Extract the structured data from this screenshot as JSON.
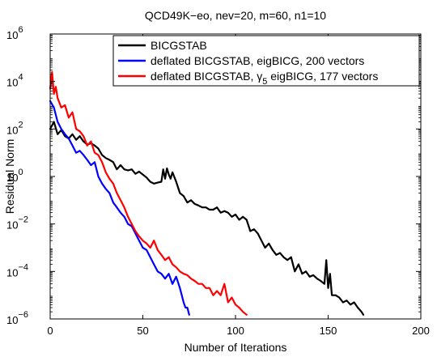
{
  "chart_data": {
    "type": "line",
    "title": "QCD49K−eo, nev=20, m=60, n1=10",
    "xlabel": "Number of Iterations",
    "ylabel": "Residual Norm",
    "xlim": [
      0,
      200
    ],
    "ylim": [
      1e-06,
      1000000.0
    ],
    "yscale": "log",
    "grid": false,
    "legend_position": "top-right",
    "x_ticks": [
      0,
      50,
      100,
      150,
      200
    ],
    "x_tick_labels": [
      "0",
      "50",
      "100",
      "150",
      "200"
    ],
    "y_ticks": [
      1e-06,
      0.0001,
      0.01,
      1.0,
      100.0,
      10000.0,
      1000000.0
    ],
    "y_tick_labels": [
      {
        "base": "10",
        "exp": "−6"
      },
      {
        "base": "10",
        "exp": "−4"
      },
      {
        "base": "10",
        "exp": "−2"
      },
      {
        "base": "10",
        "exp": "0"
      },
      {
        "base": "10",
        "exp": "2"
      },
      {
        "base": "10",
        "exp": "4"
      },
      {
        "base": "10",
        "exp": "6"
      }
    ],
    "series": [
      {
        "name": "BICGSTAB",
        "color": "#000000",
        "x": [
          0,
          2,
          4,
          6,
          8,
          10,
          12,
          14,
          16,
          18,
          20,
          22,
          24,
          26,
          28,
          30,
          32,
          34,
          36,
          38,
          40,
          42,
          44,
          46,
          48,
          50,
          52,
          54,
          56,
          58,
          60,
          61,
          62,
          63,
          64,
          65,
          66,
          68,
          70,
          72,
          74,
          76,
          78,
          80,
          82,
          84,
          86,
          88,
          90,
          92,
          94,
          96,
          98,
          100,
          102,
          104,
          106,
          108,
          110,
          112,
          114,
          116,
          118,
          120,
          122,
          124,
          126,
          128,
          130,
          132,
          134,
          136,
          138,
          140,
          142,
          144,
          146,
          148,
          149,
          150,
          151,
          152,
          154,
          156,
          158,
          160,
          162,
          164,
          166,
          168,
          169
        ],
        "y": [
          100,
          200,
          60,
          90,
          50,
          40,
          60,
          35,
          50,
          30,
          22,
          25,
          20,
          15,
          8,
          6,
          5,
          4,
          2,
          3,
          2,
          1.8,
          2,
          1.3,
          1.6,
          1.2,
          0.9,
          0.6,
          0.5,
          0.55,
          0.6,
          2,
          0.8,
          2.2,
          1.2,
          0.8,
          1.5,
          0.6,
          0.2,
          0.15,
          0.08,
          0.1,
          0.07,
          0.06,
          0.05,
          0.05,
          0.04,
          0.04,
          0.05,
          0.03,
          0.035,
          0.03,
          0.02,
          0.025,
          0.015,
          0.02,
          0.015,
          0.005,
          0.006,
          0.004,
          0.002,
          0.001,
          0.0015,
          0.0008,
          0.0005,
          0.0006,
          0.0004,
          0.0003,
          0.0004,
          0.0001,
          0.0002,
          8e-05,
          0.0001,
          6e-05,
          7e-05,
          5e-05,
          4e-05,
          3e-05,
          0.0003,
          2e-05,
          8e-05,
          1e-05,
          1e-05,
          8e-06,
          5e-06,
          6e-06,
          4e-06,
          5e-06,
          3e-06,
          2e-06,
          1.5e-06
        ]
      },
      {
        "name": "deflated BICGSTAB, eigBICG, 200 vectors",
        "color": "#0000ff",
        "x": [
          0,
          2,
          4,
          6,
          8,
          10,
          12,
          14,
          16,
          18,
          20,
          22,
          24,
          26,
          28,
          30,
          32,
          34,
          36,
          38,
          40,
          42,
          44,
          46,
          48,
          50,
          52,
          54,
          56,
          58,
          60,
          62,
          64,
          66,
          68,
          70,
          72,
          73,
          74,
          75
        ],
        "y": [
          1500,
          800,
          200,
          100,
          60,
          40,
          20,
          10,
          12,
          8,
          5,
          3,
          4,
          1,
          0.5,
          0.3,
          0.2,
          0.08,
          0.05,
          0.03,
          0.02,
          0.01,
          0.008,
          0.004,
          0.002,
          0.001,
          0.0008,
          0.0004,
          0.0002,
          0.0001,
          8e-05,
          5e-05,
          8e-05,
          3e-05,
          6e-05,
          2e-05,
          5e-06,
          3e-06,
          3e-06,
          1.5e-06
        ]
      },
      {
        "name": "deflated BICGSTAB, γ5 eigBICG, 177 vectors",
        "name_parts": {
          "before": "deflated BICGSTAB, ",
          "gamma": "γ",
          "sub": "5",
          "after": " eigBICG, 177 vectors"
        },
        "color": "#ff0000",
        "x": [
          0,
          1,
          2,
          3,
          4,
          6,
          8,
          10,
          12,
          14,
          16,
          18,
          20,
          22,
          24,
          26,
          28,
          30,
          32,
          34,
          36,
          38,
          40,
          42,
          44,
          46,
          48,
          50,
          52,
          54,
          56,
          58,
          60,
          62,
          64,
          66,
          68,
          70,
          72,
          74,
          76,
          78,
          80,
          82,
          84,
          86,
          88,
          90,
          92,
          94,
          96,
          98,
          100,
          102,
          104,
          106
        ],
        "y": [
          5000,
          25000,
          3000,
          6000,
          2000,
          800,
          1000,
          300,
          500,
          100,
          80,
          50,
          20,
          30,
          10,
          8,
          4,
          1.5,
          0.8,
          0.5,
          0.2,
          0.1,
          0.05,
          0.02,
          0.01,
          0.005,
          0.003,
          0.002,
          0.0015,
          0.001,
          0.002,
          0.0008,
          0.0005,
          0.0003,
          0.0004,
          0.0002,
          0.00015,
          0.0001,
          8e-05,
          7e-05,
          5e-05,
          4e-05,
          3e-05,
          3e-05,
          2e-05,
          2e-05,
          1e-05,
          1.5e-05,
          1e-05,
          3e-05,
          5e-06,
          8e-06,
          4e-06,
          3e-06,
          2e-06,
          1.5e-06
        ]
      }
    ]
  }
}
